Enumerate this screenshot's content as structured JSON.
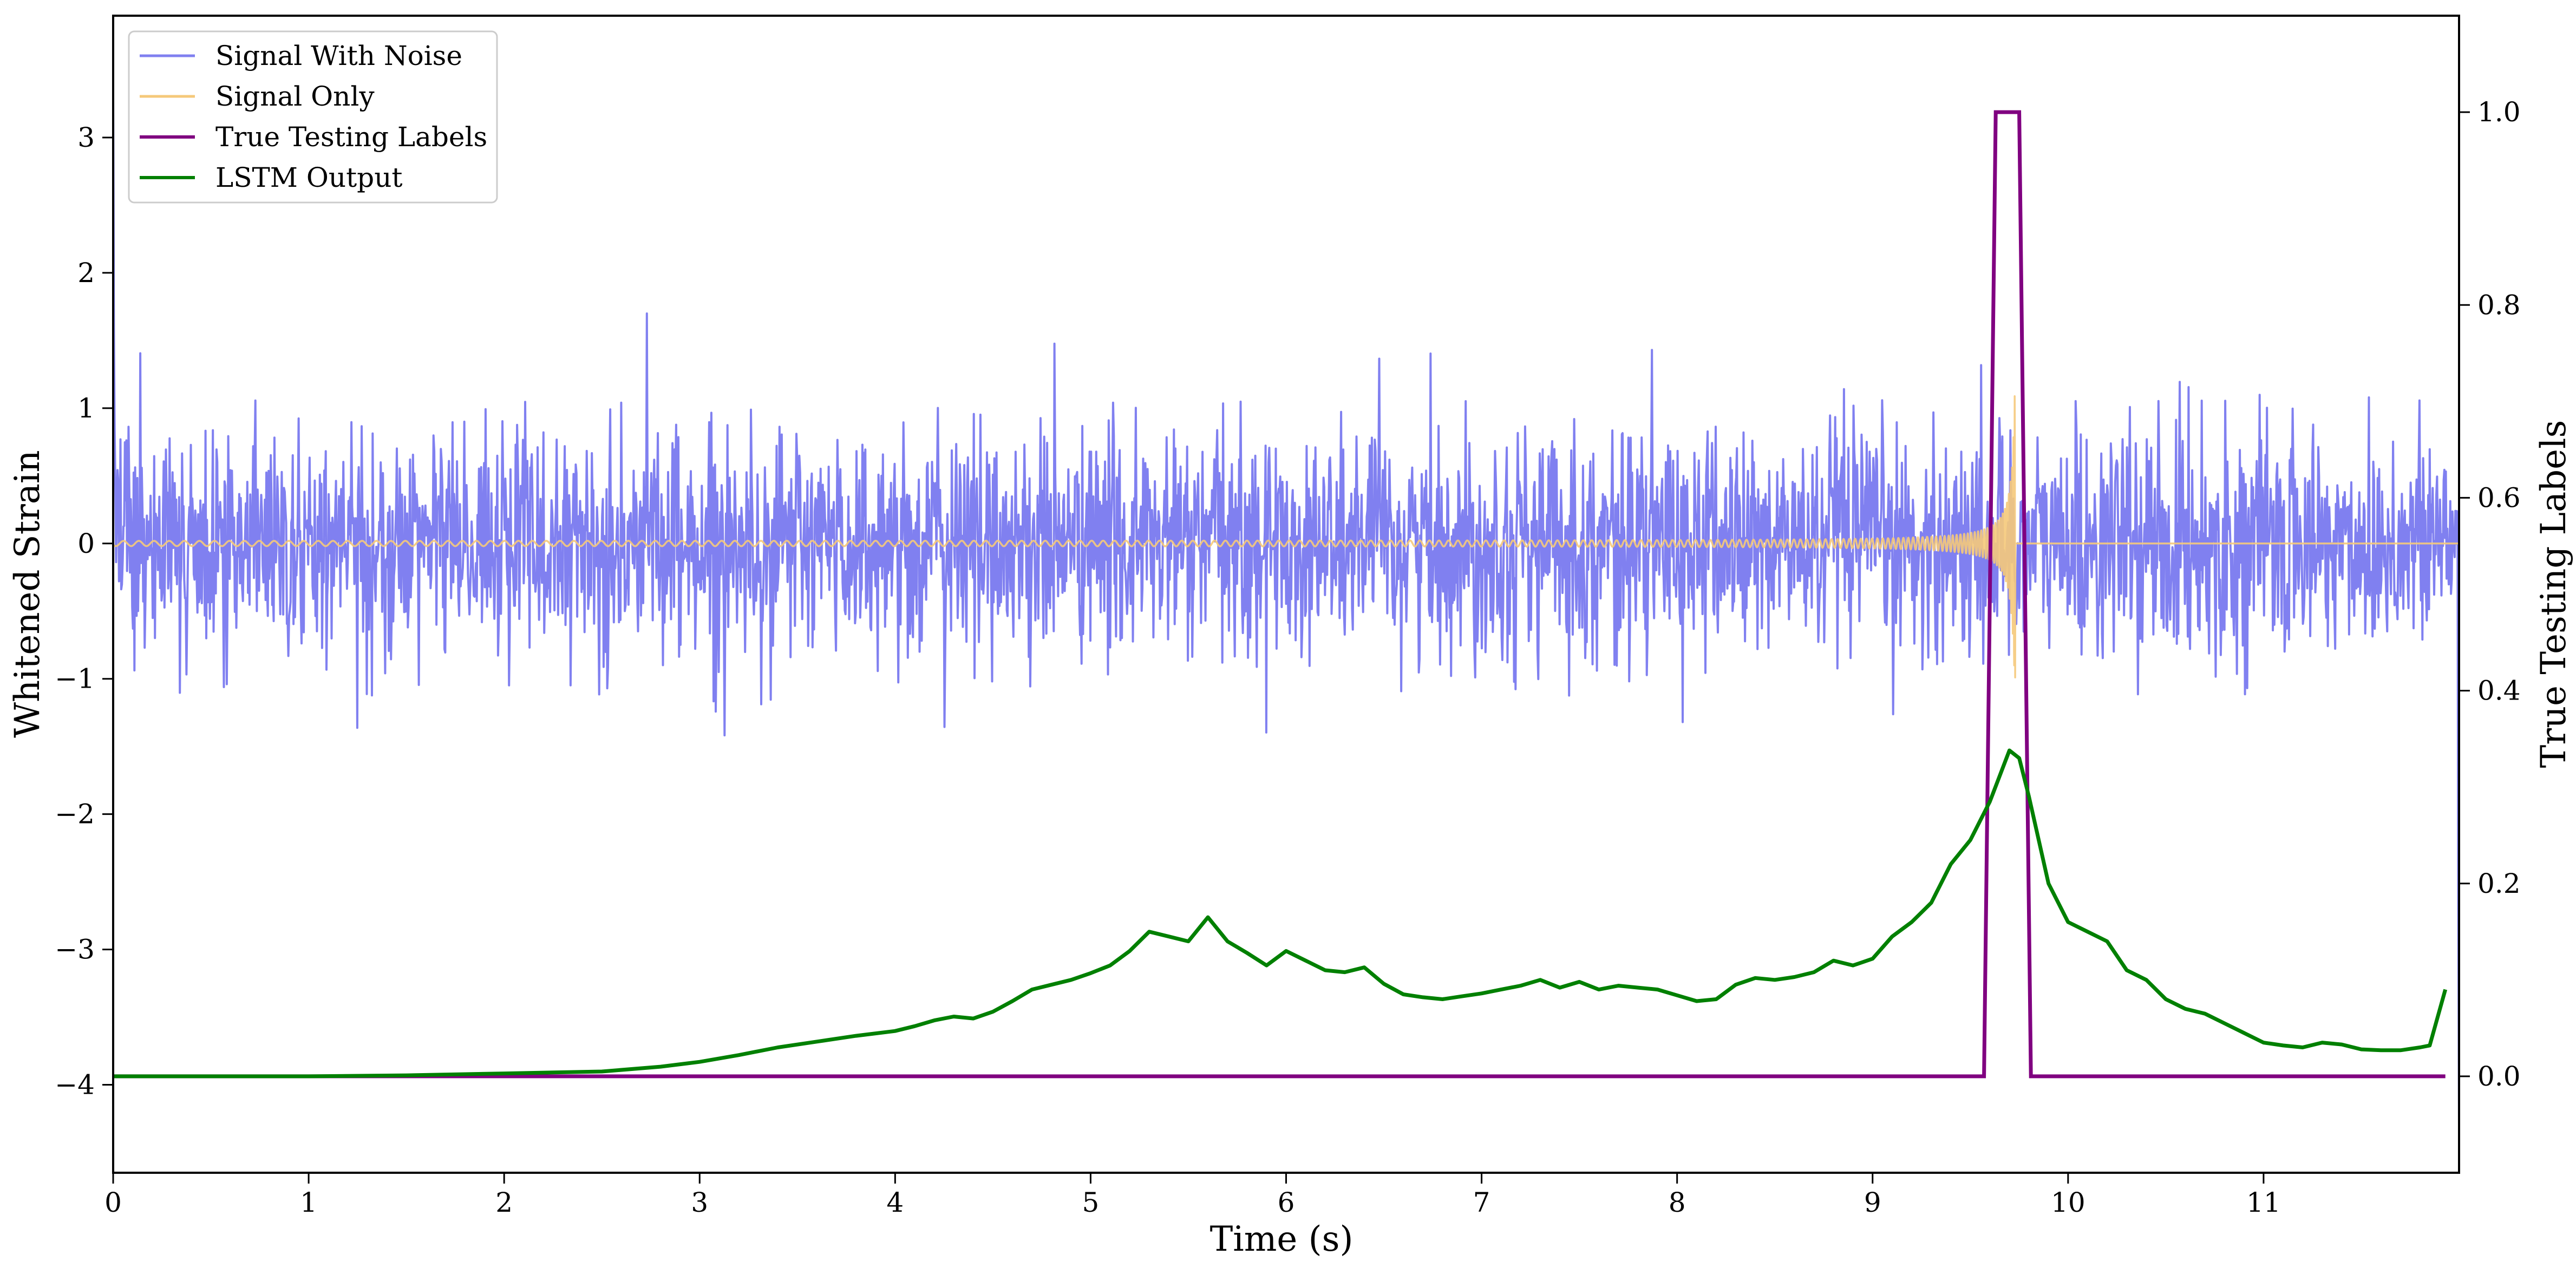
{
  "chart_data": {
    "type": "line",
    "title": "",
    "xlabel": "Time (s)",
    "ylabel": "Whitened Strain",
    "y2label": "True Testing Labels",
    "xlim": [
      0,
      12
    ],
    "ylim": [
      -4.65,
      3.9
    ],
    "y2lim": [
      -0.1,
      1.1
    ],
    "x_ticks": [
      0,
      1,
      2,
      3,
      4,
      5,
      6,
      7,
      8,
      9,
      10,
      11
    ],
    "x_tick_labels": [
      "0",
      "1",
      "2",
      "3",
      "4",
      "5",
      "6",
      "7",
      "8",
      "9",
      "10",
      "11"
    ],
    "y_ticks": [
      -4,
      -3,
      -2,
      -1,
      0,
      1,
      2,
      3
    ],
    "y_tick_labels": [
      "−4",
      "−3",
      "−2",
      "−1",
      "0",
      "1",
      "2",
      "3"
    ],
    "y2_ticks": [
      0.0,
      0.2,
      0.4,
      0.6,
      0.8,
      1.0
    ],
    "y2_tick_labels": [
      "0.0",
      "0.2",
      "0.4",
      "0.6",
      "0.8",
      "1.0"
    ],
    "grid": false,
    "legend_position": "top-left",
    "series": [
      {
        "name": "Signal With Noise",
        "axis": "left",
        "color": "#8080f0",
        "description_values": "noise band, amplitude about ±1, peaks to ±1.5, t from 0 to 12"
      },
      {
        "name": "Signal Only",
        "axis": "left",
        "color": "#f5c97a",
        "chirp_end_x": 9.73,
        "chirp_peak_amplitude": 1.1
      },
      {
        "name": "True Testing Labels",
        "axis": "right",
        "color": "#800080",
        "x": [
          0,
          9.57,
          9.63,
          9.75,
          9.81,
          11.93
        ],
        "y": [
          0,
          0,
          1,
          1,
          0,
          0
        ]
      },
      {
        "name": "LSTM Output",
        "axis": "right",
        "color": "#008000",
        "x": [
          0,
          1,
          1.5,
          2,
          2.5,
          2.8,
          3.0,
          3.2,
          3.4,
          3.6,
          3.8,
          4.0,
          4.1,
          4.2,
          4.3,
          4.4,
          4.5,
          4.6,
          4.7,
          4.8,
          4.9,
          5.0,
          5.1,
          5.2,
          5.3,
          5.4,
          5.5,
          5.6,
          5.7,
          5.8,
          5.9,
          6.0,
          6.1,
          6.2,
          6.3,
          6.4,
          6.5,
          6.6,
          6.7,
          6.8,
          6.9,
          7.0,
          7.1,
          7.2,
          7.3,
          7.4,
          7.5,
          7.6,
          7.7,
          7.8,
          7.9,
          8.0,
          8.1,
          8.2,
          8.3,
          8.4,
          8.5,
          8.6,
          8.7,
          8.8,
          8.9,
          9.0,
          9.1,
          9.2,
          9.3,
          9.4,
          9.5,
          9.6,
          9.7,
          9.75,
          9.8,
          9.9,
          10.0,
          10.1,
          10.2,
          10.3,
          10.4,
          10.5,
          10.6,
          10.7,
          10.8,
          10.9,
          11.0,
          11.1,
          11.2,
          11.3,
          11.4,
          11.5,
          11.6,
          11.7,
          11.8,
          11.85,
          11.93
        ],
        "y": [
          0.0,
          0.0,
          0.001,
          0.003,
          0.005,
          0.01,
          0.015,
          0.022,
          0.03,
          0.036,
          0.042,
          0.047,
          0.052,
          0.058,
          0.062,
          0.06,
          0.067,
          0.078,
          0.09,
          0.095,
          0.1,
          0.107,
          0.115,
          0.13,
          0.15,
          0.145,
          0.14,
          0.165,
          0.14,
          0.128,
          0.115,
          0.13,
          0.12,
          0.11,
          0.108,
          0.113,
          0.096,
          0.085,
          0.082,
          0.08,
          0.083,
          0.086,
          0.09,
          0.094,
          0.1,
          0.092,
          0.098,
          0.09,
          0.094,
          0.092,
          0.09,
          0.084,
          0.078,
          0.08,
          0.095,
          0.102,
          0.1,
          0.103,
          0.108,
          0.12,
          0.115,
          0.122,
          0.145,
          0.16,
          0.18,
          0.22,
          0.245,
          0.285,
          0.338,
          0.33,
          0.29,
          0.2,
          0.16,
          0.15,
          0.14,
          0.11,
          0.1,
          0.08,
          0.07,
          0.065,
          0.055,
          0.045,
          0.035,
          0.032,
          0.03,
          0.035,
          0.033,
          0.028,
          0.027,
          0.027,
          0.03,
          0.032,
          0.09
        ]
      }
    ]
  }
}
